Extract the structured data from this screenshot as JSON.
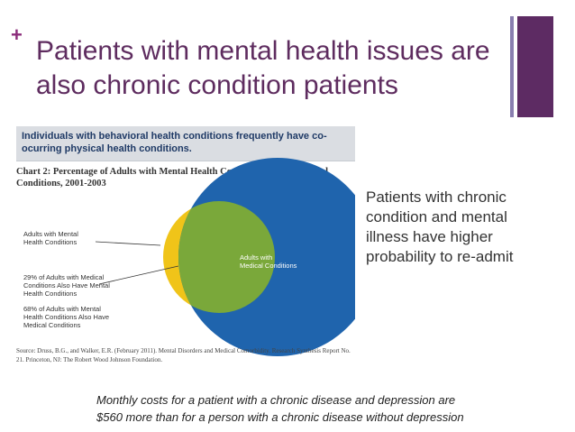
{
  "slide": {
    "plus_mark": "+",
    "title": "Patients with mental health issues are also chronic condition patients"
  },
  "figure": {
    "banner": "Individuals with behavioral health conditions frequently have co-ocurring physical health conditions.",
    "chart_title": "Chart 2: Percentage of Adults with Mental Health Conditions and/or Medical Conditions, 2001-2003",
    "labels": {
      "mental": "Adults with Mental Health Conditions",
      "pct29": "29% of Adults with Medical Conditions Also Have Mental Health Conditions",
      "pct68": "68% of Adults with Mental Health Conditions Also Have Medical Conditions",
      "medical": "Adults with Medical Conditions"
    },
    "source": "Source: Druss, B.G., and Walker, E.R. (February 2011). Mental Disorders and Medical Comorbidity. Research Synthesis Report No. 21. Princeton, NJ: The Robert Wood Johnson Foundation.",
    "colors": {
      "mental": "#f0c419",
      "medical": "#1f64ad",
      "overlap": "#7aa83a"
    }
  },
  "side_text": "Patients with chronic condition and mental illness have higher probability to re-admit",
  "footer": {
    "line1": "Monthly costs for a patient with a chronic disease and depression are",
    "line2": "$560 more than for a person with a chronic disease without depression"
  },
  "colors": {
    "title": "#5e2c5f",
    "accent_bar": "#5d2b63",
    "accent_bar_thin": "#8a7fb0"
  }
}
